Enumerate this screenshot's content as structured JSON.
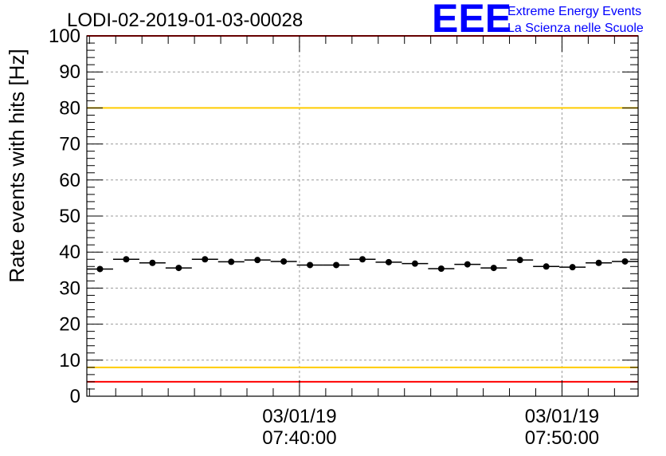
{
  "chart_data": {
    "type": "scatter",
    "title": "LODI-02-2019-01-03-00028",
    "ylabel": "Rate events with hits [Hz]",
    "xlabel": "",
    "ylim": [
      0,
      100
    ],
    "yticks": [
      0,
      10,
      20,
      30,
      40,
      50,
      60,
      70,
      80,
      90,
      100
    ],
    "grid": true,
    "x_tick_labels": [
      {
        "time": "07:40:00",
        "date": "03/01/19"
      },
      {
        "time": "07:50:00",
        "date": "03/01/19"
      }
    ],
    "x_range_minutes": [
      31.9,
      52.9
    ],
    "bin_width_minutes": 1.0,
    "points": [
      {
        "x": 32.4,
        "y": 35.3
      },
      {
        "x": 33.4,
        "y": 38.0
      },
      {
        "x": 34.4,
        "y": 37.0
      },
      {
        "x": 35.4,
        "y": 35.6
      },
      {
        "x": 36.4,
        "y": 38.0
      },
      {
        "x": 37.4,
        "y": 37.3
      },
      {
        "x": 38.4,
        "y": 37.8
      },
      {
        "x": 39.4,
        "y": 37.4
      },
      {
        "x": 40.4,
        "y": 36.4
      },
      {
        "x": 41.4,
        "y": 36.4
      },
      {
        "x": 42.4,
        "y": 38.0
      },
      {
        "x": 43.4,
        "y": 37.2
      },
      {
        "x": 44.4,
        "y": 36.8
      },
      {
        "x": 45.4,
        "y": 35.4
      },
      {
        "x": 46.4,
        "y": 36.6
      },
      {
        "x": 47.4,
        "y": 35.6
      },
      {
        "x": 48.4,
        "y": 37.8
      },
      {
        "x": 49.4,
        "y": 36.0
      },
      {
        "x": 50.4,
        "y": 35.8
      },
      {
        "x": 51.4,
        "y": 37.0
      },
      {
        "x": 52.4,
        "y": 37.4
      }
    ],
    "reference_lines": [
      {
        "y": 100,
        "color": "#ff0000"
      },
      {
        "y": 80,
        "color": "#ffcc00"
      },
      {
        "y": 8,
        "color": "#ffcc00"
      },
      {
        "y": 4,
        "color": "#ff0000"
      }
    ]
  },
  "logo": {
    "mark": "EEE",
    "line1": "Extreme Energy Events",
    "line2": "La Scienza nelle Scuole",
    "color": "#0000ff"
  }
}
